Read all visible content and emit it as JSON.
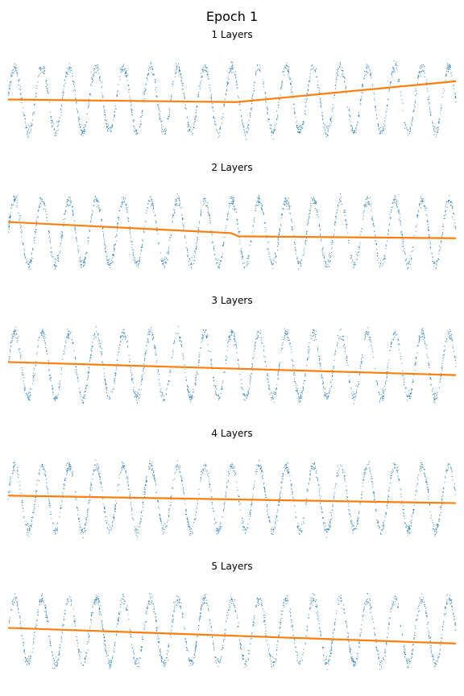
{
  "figure": {
    "title": "Epoch 1"
  },
  "colors": {
    "data_points": "#1f77b4",
    "model_fit": "#ff7f0e",
    "background": "#ffffff"
  },
  "chart_data": [
    {
      "type": "scatter",
      "title": "1 Layers",
      "axes_visible": false,
      "grid": false,
      "xlim": [
        0,
        16.5
      ],
      "ylim": [
        -1.35,
        1.35
      ],
      "data_series": {
        "name": "",
        "function": "sin(2*pi*x) + noise",
        "cycles": 16.5,
        "noise": 0.08,
        "color": "#1f77b4"
      },
      "fit_series": {
        "name": "",
        "type": "line",
        "x": [
          0,
          8.4,
          16.5
        ],
        "y": [
          0.0,
          -0.08,
          0.56
        ],
        "color": "#ff7f0e"
      }
    },
    {
      "type": "scatter",
      "title": "2 Layers",
      "axes_visible": false,
      "grid": false,
      "xlim": [
        0,
        16.5
      ],
      "ylim": [
        -1.35,
        1.35
      ],
      "data_series": {
        "name": "",
        "function": "sin(2*pi*x) + noise",
        "cycles": 16.5,
        "noise": 0.08,
        "color": "#1f77b4"
      },
      "fit_series": {
        "name": "",
        "type": "line",
        "x": [
          0,
          8.2,
          8.5,
          16.5
        ],
        "y": [
          0.32,
          -0.02,
          -0.12,
          -0.18
        ],
        "color": "#ff7f0e"
      }
    },
    {
      "type": "scatter",
      "title": "3 Layers",
      "axes_visible": false,
      "grid": false,
      "xlim": [
        0,
        16.5
      ],
      "ylim": [
        -1.35,
        1.35
      ],
      "data_series": {
        "name": "",
        "function": "sin(2*pi*x) + noise",
        "cycles": 16.5,
        "noise": 0.08,
        "color": "#1f77b4"
      },
      "fit_series": {
        "name": "",
        "type": "line",
        "x": [
          0,
          16.5
        ],
        "y": [
          0.1,
          -0.3
        ],
        "color": "#ff7f0e"
      }
    },
    {
      "type": "scatter",
      "title": "4 Layers",
      "axes_visible": false,
      "grid": false,
      "xlim": [
        0,
        16.5
      ],
      "ylim": [
        -1.35,
        1.35
      ],
      "data_series": {
        "name": "",
        "function": "sin(2*pi*x) + noise",
        "cycles": 16.5,
        "noise": 0.08,
        "color": "#1f77b4"
      },
      "fit_series": {
        "name": "",
        "type": "line",
        "x": [
          0,
          16.5
        ],
        "y": [
          0.08,
          -0.15
        ],
        "color": "#ff7f0e"
      }
    },
    {
      "type": "scatter",
      "title": "5 Layers",
      "axes_visible": false,
      "grid": false,
      "xlim": [
        0,
        16.5
      ],
      "ylim": [
        -1.35,
        1.35
      ],
      "data_series": {
        "name": "",
        "function": "sin(2*pi*x) + noise",
        "cycles": 16.5,
        "noise": 0.08,
        "color": "#1f77b4"
      },
      "fit_series": {
        "name": "",
        "type": "line",
        "x": [
          0,
          16.5
        ],
        "y": [
          0.1,
          -0.38
        ],
        "color": "#ff7f0e"
      }
    }
  ]
}
